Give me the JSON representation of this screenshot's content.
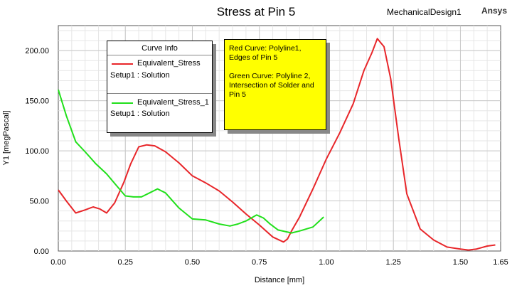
{
  "header": {
    "project": "MechanicalDesign1",
    "brand": "Ansys"
  },
  "legend": {
    "title": "Curve Info",
    "entries": [
      {
        "name": "Equivalent_Stress",
        "sub": "Setup1 : Solution",
        "color": "#e8262a"
      },
      {
        "name": "Equivalent_Stress_1",
        "sub": "Setup1 : Solution",
        "color": "#21e01b"
      }
    ]
  },
  "note": {
    "line1": "Red Curve: Polyline1, Edges of Pin 5",
    "line2": "Green Curve: Polyline 2, Intersection of Solder and Pin 5",
    "background": "#ffff00"
  },
  "chart_data": {
    "type": "line",
    "title": "Stress at Pin 5",
    "xlabel": "Distance [mm]",
    "ylabel": "Y1 [megPascal]",
    "xlim": [
      0,
      1.65
    ],
    "ylim": [
      0,
      225
    ],
    "xticks": [
      "0.00",
      "0.25",
      "0.50",
      "0.75",
      "1.00",
      "1.25",
      "1.50",
      "1.65"
    ],
    "yticks": [
      "0.00",
      "50.00",
      "100.00",
      "150.00",
      "200.00"
    ],
    "grid": true,
    "legend_position": "top-left",
    "series": [
      {
        "name": "Equivalent_Stress",
        "color": "#e8262a",
        "x": [
          0,
          0.03,
          0.065,
          0.1,
          0.13,
          0.155,
          0.18,
          0.21,
          0.245,
          0.27,
          0.3,
          0.33,
          0.36,
          0.4,
          0.45,
          0.5,
          0.55,
          0.6,
          0.65,
          0.7,
          0.75,
          0.8,
          0.84,
          0.855,
          0.87,
          0.9,
          0.95,
          1.0,
          1.05,
          1.1,
          1.14,
          1.17,
          1.19,
          1.215,
          1.24,
          1.27,
          1.3,
          1.35,
          1.4,
          1.45,
          1.5,
          1.53,
          1.56,
          1.6,
          1.63
        ],
        "y": [
          61,
          50,
          38,
          41,
          44,
          42,
          38,
          48,
          69,
          87,
          104,
          106,
          105,
          99,
          88,
          75,
          68,
          60,
          49,
          37,
          26,
          14,
          9,
          12,
          20,
          34,
          62,
          92,
          118,
          147,
          180,
          198,
          212,
          204,
          172,
          112,
          57,
          22,
          11,
          4,
          2,
          1,
          2,
          5,
          6
        ]
      },
      {
        "name": "Equivalent_Stress_1",
        "color": "#21e01b",
        "x": [
          0,
          0.03,
          0.065,
          0.1,
          0.14,
          0.18,
          0.215,
          0.25,
          0.28,
          0.31,
          0.34,
          0.37,
          0.4,
          0.45,
          0.5,
          0.55,
          0.6,
          0.64,
          0.67,
          0.7,
          0.74,
          0.765,
          0.79,
          0.82,
          0.87,
          0.9,
          0.95,
          0.99
        ],
        "y": [
          161,
          135,
          109,
          99,
          87,
          77,
          66,
          55,
          54,
          54,
          58,
          62,
          58,
          43,
          32,
          31,
          27,
          25,
          27,
          30,
          36,
          33,
          27,
          21,
          18,
          20,
          24,
          34
        ]
      }
    ]
  }
}
